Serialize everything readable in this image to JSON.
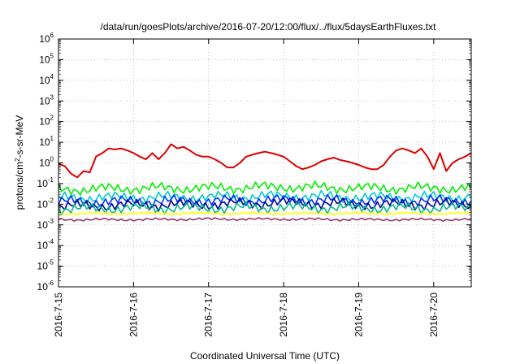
{
  "chart_data": {
    "type": "line",
    "title": "/data/run/goesPlots/archive/2016-07-20/12:00/flux/../flux/5daysEarthFluxes.txt",
    "xlabel": "Coordinated Universal Time (UTC)",
    "ylabel": "protons/cm²-s-sr-MeV",
    "ylabel_parts": {
      "pre": "protons/cm",
      "sup": "2",
      "post": "-s-sr-MeV"
    },
    "y_scale": "log",
    "ylim": [
      1e-06,
      1000000.0
    ],
    "xlim": [
      "2016-07-15",
      "2016-07-20 12:00"
    ],
    "x_ticks": [
      "2016-7-15",
      "2016-7-16",
      "2016-7-17",
      "2016-7-18",
      "2016-7-19",
      "2016-7-20"
    ],
    "y_ticks": [
      {
        "value": 1e-06,
        "base": "10",
        "exp": "-6"
      },
      {
        "value": 1e-05,
        "base": "10",
        "exp": "-5"
      },
      {
        "value": 0.0001,
        "base": "10",
        "exp": "-4"
      },
      {
        "value": 0.001,
        "base": "10",
        "exp": "-3"
      },
      {
        "value": 0.01,
        "base": "10",
        "exp": "-2"
      },
      {
        "value": 0.1,
        "base": "10",
        "exp": "-1"
      },
      {
        "value": 1,
        "base": "10",
        "exp": "0"
      },
      {
        "value": 10.0,
        "base": "10",
        "exp": "1"
      },
      {
        "value": 100.0,
        "base": "10",
        "exp": "2"
      },
      {
        "value": 1000.0,
        "base": "10",
        "exp": "3"
      },
      {
        "value": 10000.0,
        "base": "10",
        "exp": "4"
      },
      {
        "value": 100000.0,
        "base": "10",
        "exp": "5"
      },
      {
        "value": 1000000.0,
        "base": "10",
        "exp": "6"
      }
    ],
    "grid": true,
    "legend": "none",
    "series": [
      {
        "color": "#dd0000",
        "points": [
          [
            "2016-07-15 00:00",
            0.9
          ],
          [
            "2016-07-15 02:00",
            0.7
          ],
          [
            "2016-07-15 04:00",
            0.3
          ],
          [
            "2016-07-15 06:00",
            0.2
          ],
          [
            "2016-07-15 08:00",
            0.4
          ],
          [
            "2016-07-15 10:00",
            0.35
          ],
          [
            "2016-07-15 12:00",
            2.0
          ],
          [
            "2016-07-15 14:00",
            3.0
          ],
          [
            "2016-07-15 16:00",
            5.0
          ],
          [
            "2016-07-15 18:00",
            4.5
          ],
          [
            "2016-07-15 20:00",
            5.0
          ],
          [
            "2016-07-15 22:00",
            4.0
          ],
          [
            "2016-07-16 00:00",
            3.0
          ],
          [
            "2016-07-16 02:00",
            2.0
          ],
          [
            "2016-07-16 04:00",
            1.5
          ],
          [
            "2016-07-16 06:00",
            3.0
          ],
          [
            "2016-07-16 08:00",
            1.5
          ],
          [
            "2016-07-16 10:00",
            3.0
          ],
          [
            "2016-07-16 12:00",
            8.0
          ],
          [
            "2016-07-16 14:00",
            5.0
          ],
          [
            "2016-07-16 16:00",
            6.0
          ],
          [
            "2016-07-16 18:00",
            4.0
          ],
          [
            "2016-07-16 20:00",
            2.5
          ],
          [
            "2016-07-16 22:00",
            2.0
          ],
          [
            "2016-07-17 00:00",
            2.0
          ],
          [
            "2016-07-17 02:00",
            1.5
          ],
          [
            "2016-07-17 04:00",
            1.0
          ],
          [
            "2016-07-17 06:00",
            0.6
          ],
          [
            "2016-07-17 08:00",
            0.6
          ],
          [
            "2016-07-17 10:00",
            1.0
          ],
          [
            "2016-07-17 12:00",
            2.0
          ],
          [
            "2016-07-17 14:00",
            2.5
          ],
          [
            "2016-07-17 16:00",
            3.0
          ],
          [
            "2016-07-17 18:00",
            3.5
          ],
          [
            "2016-07-17 20:00",
            3.0
          ],
          [
            "2016-07-17 22:00",
            2.5
          ],
          [
            "2016-07-18 00:00",
            2.0
          ],
          [
            "2016-07-18 02:00",
            1.2
          ],
          [
            "2016-07-18 04:00",
            0.7
          ],
          [
            "2016-07-18 06:00",
            0.5
          ],
          [
            "2016-07-18 08:00",
            0.6
          ],
          [
            "2016-07-18 10:00",
            0.8
          ],
          [
            "2016-07-18 12:00",
            1.2
          ],
          [
            "2016-07-18 14:00",
            1.5
          ],
          [
            "2016-07-18 16:00",
            1.8
          ],
          [
            "2016-07-18 18:00",
            1.4
          ],
          [
            "2016-07-18 20:00",
            1.2
          ],
          [
            "2016-07-18 22:00",
            1.0
          ],
          [
            "2016-07-19 00:00",
            0.8
          ],
          [
            "2016-07-19 02:00",
            0.6
          ],
          [
            "2016-07-19 04:00",
            0.5
          ],
          [
            "2016-07-19 06:00",
            0.5
          ],
          [
            "2016-07-19 08:00",
            0.8
          ],
          [
            "2016-07-19 10:00",
            2.0
          ],
          [
            "2016-07-19 12:00",
            4.0
          ],
          [
            "2016-07-19 14:00",
            5.0
          ],
          [
            "2016-07-19 16:00",
            4.0
          ],
          [
            "2016-07-19 18:00",
            3.0
          ],
          [
            "2016-07-19 20:00",
            5.0
          ],
          [
            "2016-07-19 22:00",
            2.0
          ],
          [
            "2016-07-20 00:00",
            0.5
          ],
          [
            "2016-07-20 02:00",
            3.0
          ],
          [
            "2016-07-20 04:00",
            0.4
          ],
          [
            "2016-07-20 06:00",
            1.0
          ],
          [
            "2016-07-20 08:00",
            1.5
          ],
          [
            "2016-07-20 10:00",
            2.0
          ],
          [
            "2016-07-20 12:00",
            3.0
          ]
        ]
      },
      {
        "color": "#00ee00",
        "points": [
          [
            "2016-07-15 00:00",
            0.05
          ],
          [
            "2016-07-16 00:00",
            0.06
          ],
          [
            "2016-07-17 00:00",
            0.06
          ],
          [
            "2016-07-18 00:00",
            0.07
          ],
          [
            "2016-07-19 00:00",
            0.06
          ],
          [
            "2016-07-20 00:00",
            0.06
          ],
          [
            "2016-07-20 12:00",
            0.06
          ]
        ]
      },
      {
        "color": "#00cccc",
        "points": [
          [
            "2016-07-15 00:00",
            0.02
          ],
          [
            "2016-07-16 00:00",
            0.022
          ],
          [
            "2016-07-17 00:00",
            0.022
          ],
          [
            "2016-07-18 00:00",
            0.025
          ],
          [
            "2016-07-19 00:00",
            0.022
          ],
          [
            "2016-07-20 00:00",
            0.022
          ],
          [
            "2016-07-20 12:00",
            0.022
          ]
        ]
      },
      {
        "color": "#0033ff",
        "points": [
          [
            "2016-07-15 00:00",
            0.013
          ],
          [
            "2016-07-16 00:00",
            0.014
          ],
          [
            "2016-07-17 00:00",
            0.015
          ],
          [
            "2016-07-18 00:00",
            0.016
          ],
          [
            "2016-07-19 00:00",
            0.015
          ],
          [
            "2016-07-20 00:00",
            0.015
          ],
          [
            "2016-07-20 12:00",
            0.015
          ]
        ]
      },
      {
        "color": "#000099",
        "points": [
          [
            "2016-07-15 00:00",
            0.008
          ],
          [
            "2016-07-16 00:00",
            0.009
          ],
          [
            "2016-07-17 00:00",
            0.01
          ],
          [
            "2016-07-18 00:00",
            0.012
          ],
          [
            "2016-07-19 00:00",
            0.01
          ],
          [
            "2016-07-20 00:00",
            0.01
          ],
          [
            "2016-07-20 12:00",
            0.01
          ]
        ]
      },
      {
        "color": "#00bb88",
        "points": [
          [
            "2016-07-15 00:00",
            0.006
          ],
          [
            "2016-07-16 00:00",
            0.0065
          ],
          [
            "2016-07-17 00:00",
            0.0065
          ],
          [
            "2016-07-18 00:00",
            0.007
          ],
          [
            "2016-07-19 00:00",
            0.0065
          ],
          [
            "2016-07-20 00:00",
            0.0065
          ],
          [
            "2016-07-20 12:00",
            0.0065
          ]
        ]
      },
      {
        "color": "#ffff00",
        "points": [
          [
            "2016-07-15 00:00",
            0.0035
          ],
          [
            "2016-07-16 00:00",
            0.0036
          ],
          [
            "2016-07-17 00:00",
            0.0036
          ],
          [
            "2016-07-18 00:00",
            0.0036
          ],
          [
            "2016-07-19 00:00",
            0.0036
          ],
          [
            "2016-07-20 00:00",
            0.0036
          ],
          [
            "2016-07-20 12:00",
            0.0036
          ]
        ]
      },
      {
        "color": "#993366",
        "points": [
          [
            "2016-07-15 00:00",
            0.0018
          ],
          [
            "2016-07-16 00:00",
            0.0018
          ],
          [
            "2016-07-17 00:00",
            0.0019
          ],
          [
            "2016-07-18 00:00",
            0.0019
          ],
          [
            "2016-07-19 00:00",
            0.0018
          ],
          [
            "2016-07-20 00:00",
            0.0018
          ],
          [
            "2016-07-20 12:00",
            0.0018
          ]
        ]
      }
    ]
  }
}
